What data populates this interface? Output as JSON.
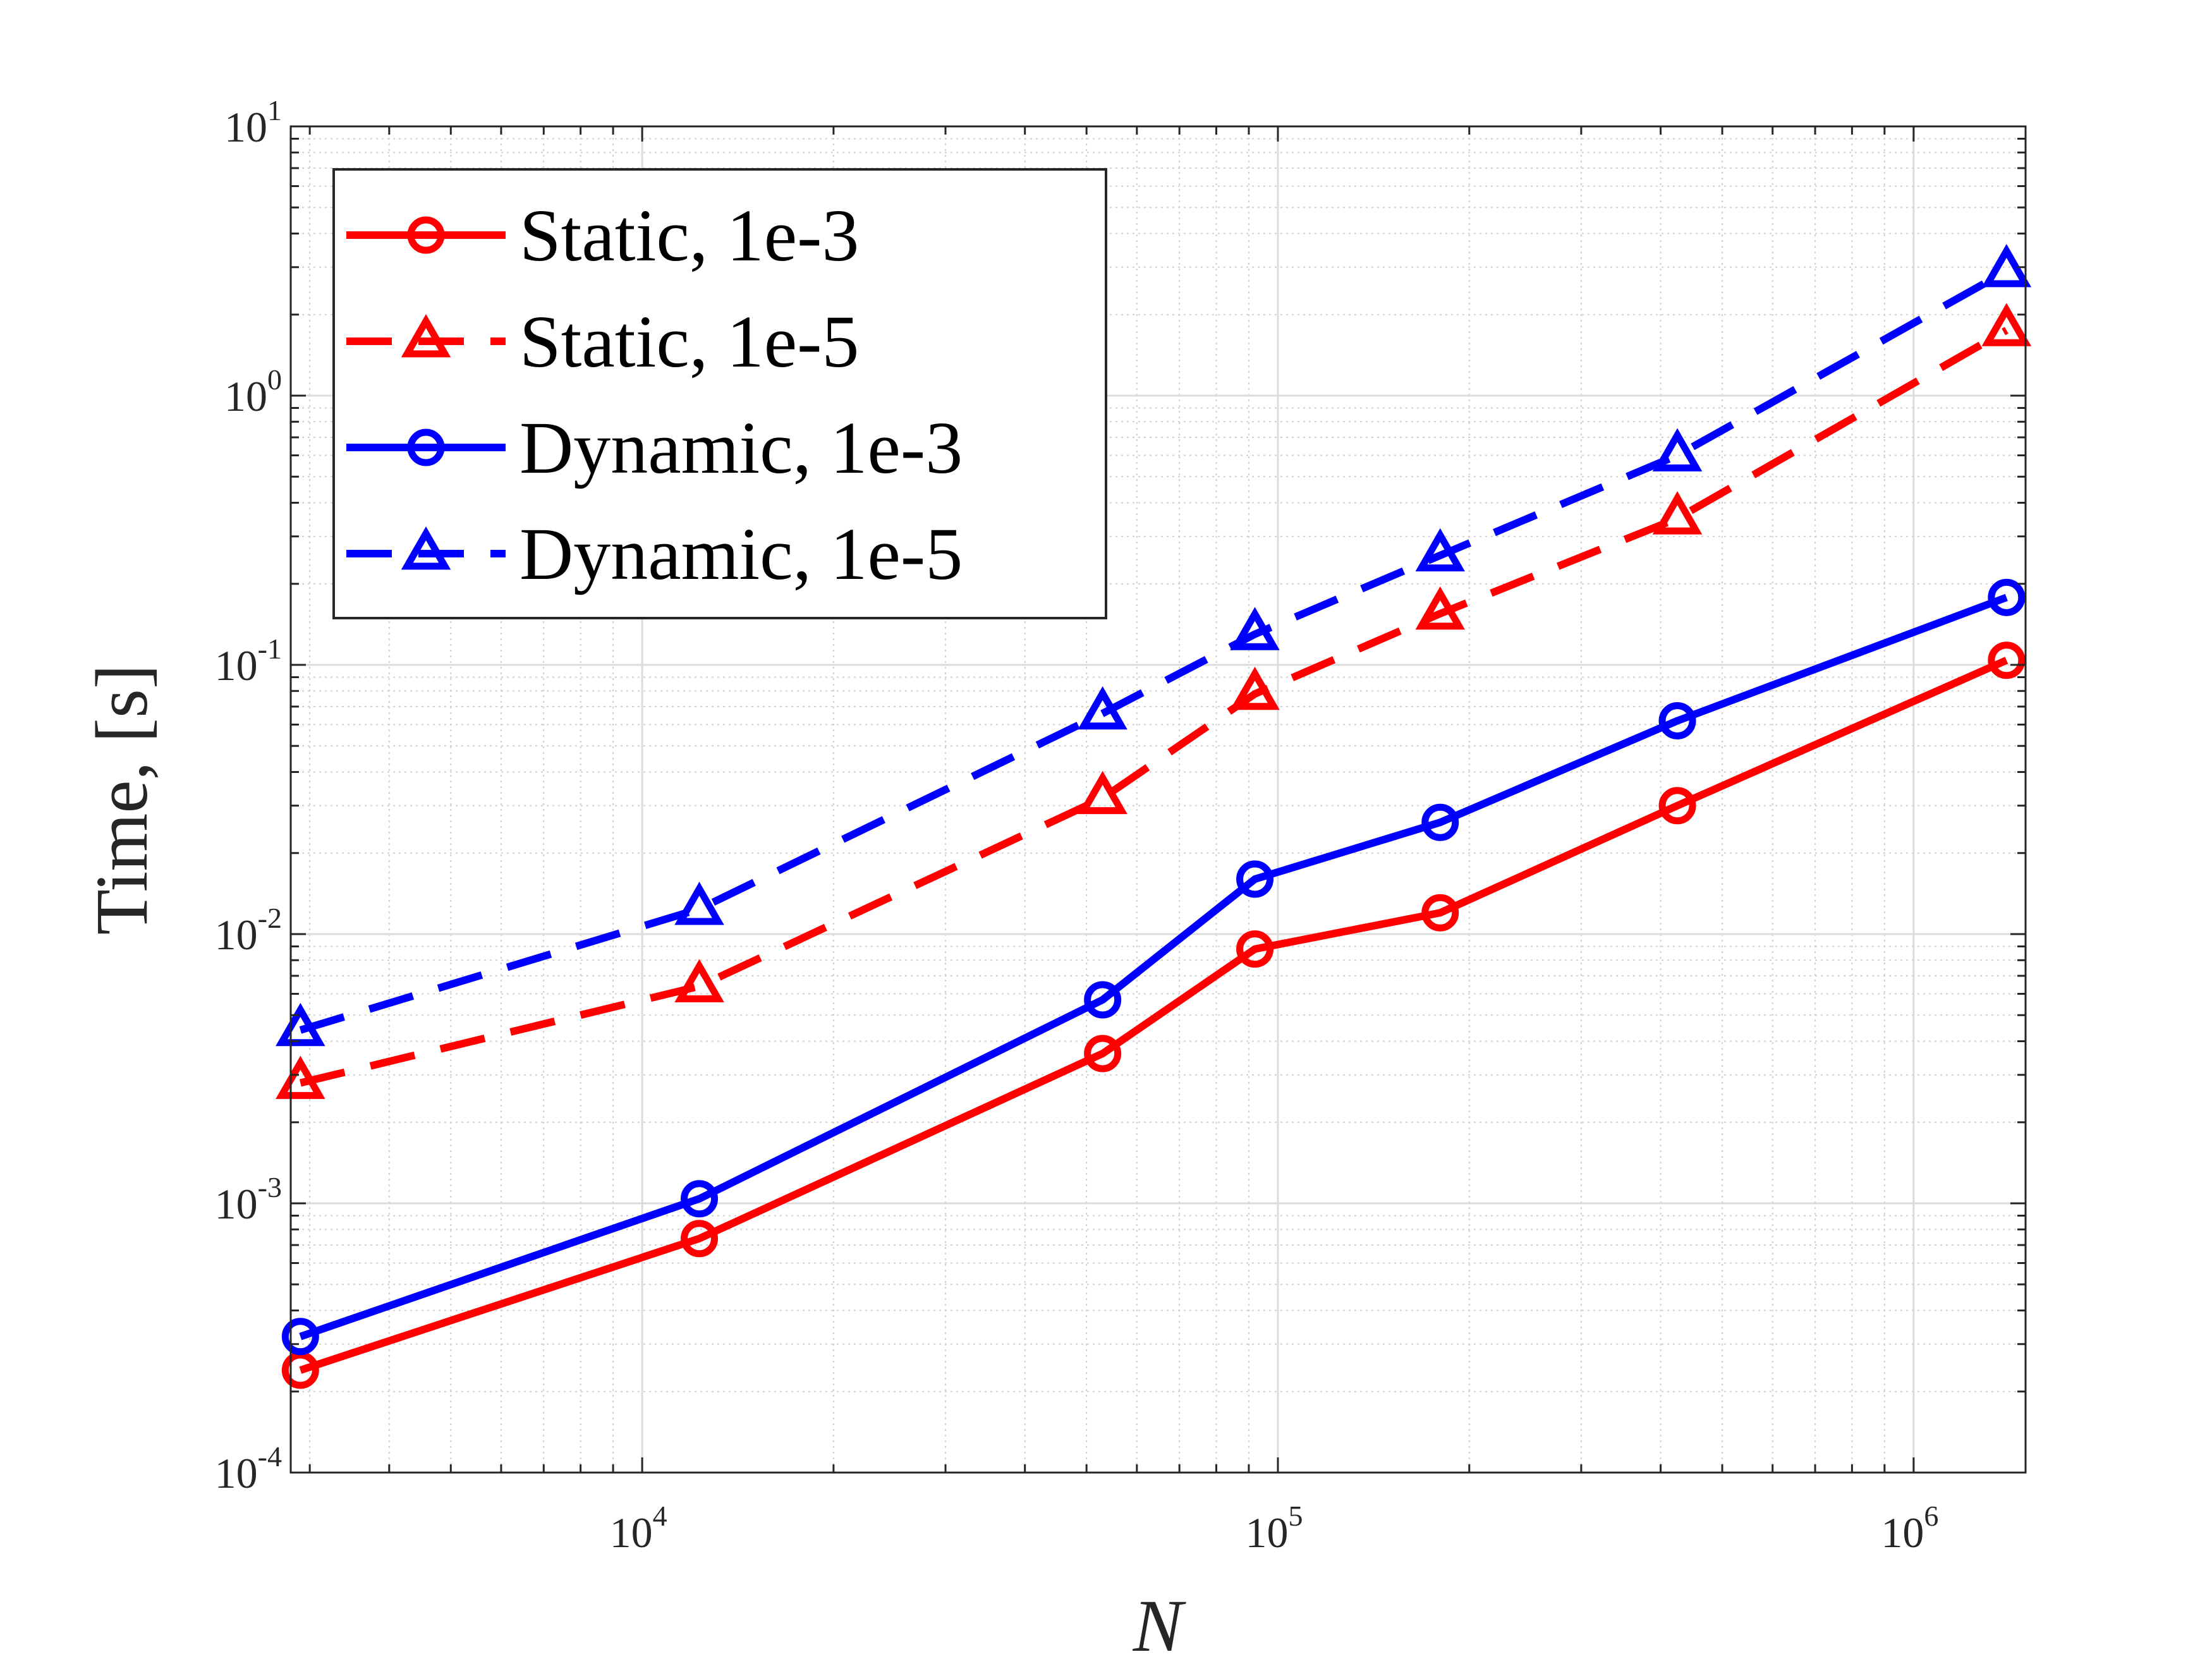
{
  "chart_data": {
    "type": "line",
    "title": "",
    "xlabel": "N",
    "ylabel": "Time, [s]",
    "xscale": "log",
    "yscale": "log",
    "xlim": [
      2800,
      1500000
    ],
    "ylim": [
      0.0001,
      10
    ],
    "grid": "on (major and minor)",
    "legend_position": "top-left",
    "x_ticks": [
      {
        "value": 10000,
        "base": "10",
        "exp": "4"
      },
      {
        "value": 100000,
        "base": "10",
        "exp": "5"
      },
      {
        "value": 1000000,
        "base": "10",
        "exp": "6"
      }
    ],
    "y_ticks": [
      {
        "value": 0.0001,
        "base": "10",
        "exp": "-4"
      },
      {
        "value": 0.001,
        "base": "10",
        "exp": "-3"
      },
      {
        "value": 0.01,
        "base": "10",
        "exp": "-2"
      },
      {
        "value": 0.1,
        "base": "10",
        "exp": "-1"
      },
      {
        "value": 1,
        "base": "10",
        "exp": "0"
      },
      {
        "value": 10,
        "base": "10",
        "exp": "1"
      }
    ],
    "x": [
      2900,
      12300,
      53000,
      92000,
      180000,
      425000,
      1400000
    ],
    "series": [
      {
        "name": "Static, 1e-3",
        "color": "#ff0000",
        "line": "solid",
        "marker": "circle",
        "values": [
          0.00024,
          0.00074,
          0.0036,
          0.0088,
          0.012,
          0.03,
          0.104
        ]
      },
      {
        "name": "Static, 1e-5",
        "color": "#ff0000",
        "line": "dashed",
        "marker": "triangle",
        "values": [
          0.0028,
          0.0064,
          0.032,
          0.078,
          0.155,
          0.35,
          1.75
        ]
      },
      {
        "name": "Dynamic, 1e-3",
        "color": "#0000ff",
        "line": "solid",
        "marker": "circle",
        "values": [
          0.00032,
          0.00104,
          0.0057,
          0.016,
          0.026,
          0.062,
          0.178
        ]
      },
      {
        "name": "Dynamic, 1e-5",
        "color": "#0000ff",
        "line": "dashed",
        "marker": "triangle",
        "values": [
          0.0044,
          0.0124,
          0.066,
          0.13,
          0.255,
          0.6,
          2.9
        ]
      }
    ]
  }
}
